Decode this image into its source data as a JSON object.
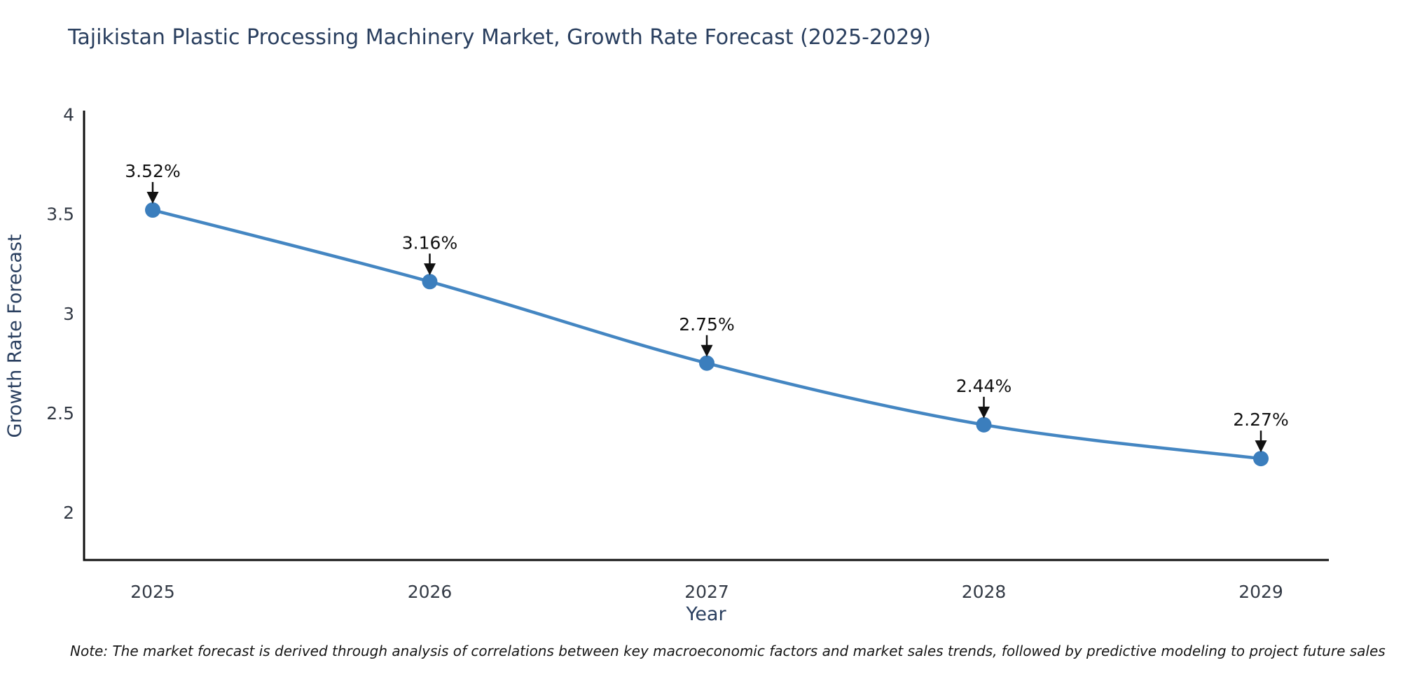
{
  "title": {
    "text": "Tajikistan Plastic Processing Machinery Market, Growth Rate Forecast (2025-2029)",
    "color": "#2a3f5f"
  },
  "note": {
    "text": "Note: The market forecast is derived through analysis of correlations between key macroeconomic factors and market sales trends, followed by predictive modeling to project future sales"
  },
  "chart_data": {
    "type": "line",
    "categories": [
      "2025",
      "2026",
      "2027",
      "2028",
      "2029"
    ],
    "values": [
      3.52,
      3.16,
      2.75,
      2.44,
      2.27
    ],
    "point_labels": [
      "3.52%",
      "3.16%",
      "2.75%",
      "2.44%",
      "2.27%"
    ],
    "title": "Tajikistan Plastic Processing Machinery Market, Growth Rate Forecast (2025-2029)",
    "xlabel": "Year",
    "ylabel": "Growth Rate Forecast",
    "ylim": [
      1.76,
      4.02
    ],
    "yticks": [
      2,
      2.5,
      3,
      3.5,
      4
    ],
    "grid": false,
    "legend": "none",
    "line_color": "#4486c2",
    "marker_color": "#3b7ebd",
    "axis_line_color": "#0f0f0f",
    "tick_color": "#333a45",
    "axis_title_color": "#2a3f5f",
    "annotation_color": "#111111"
  }
}
